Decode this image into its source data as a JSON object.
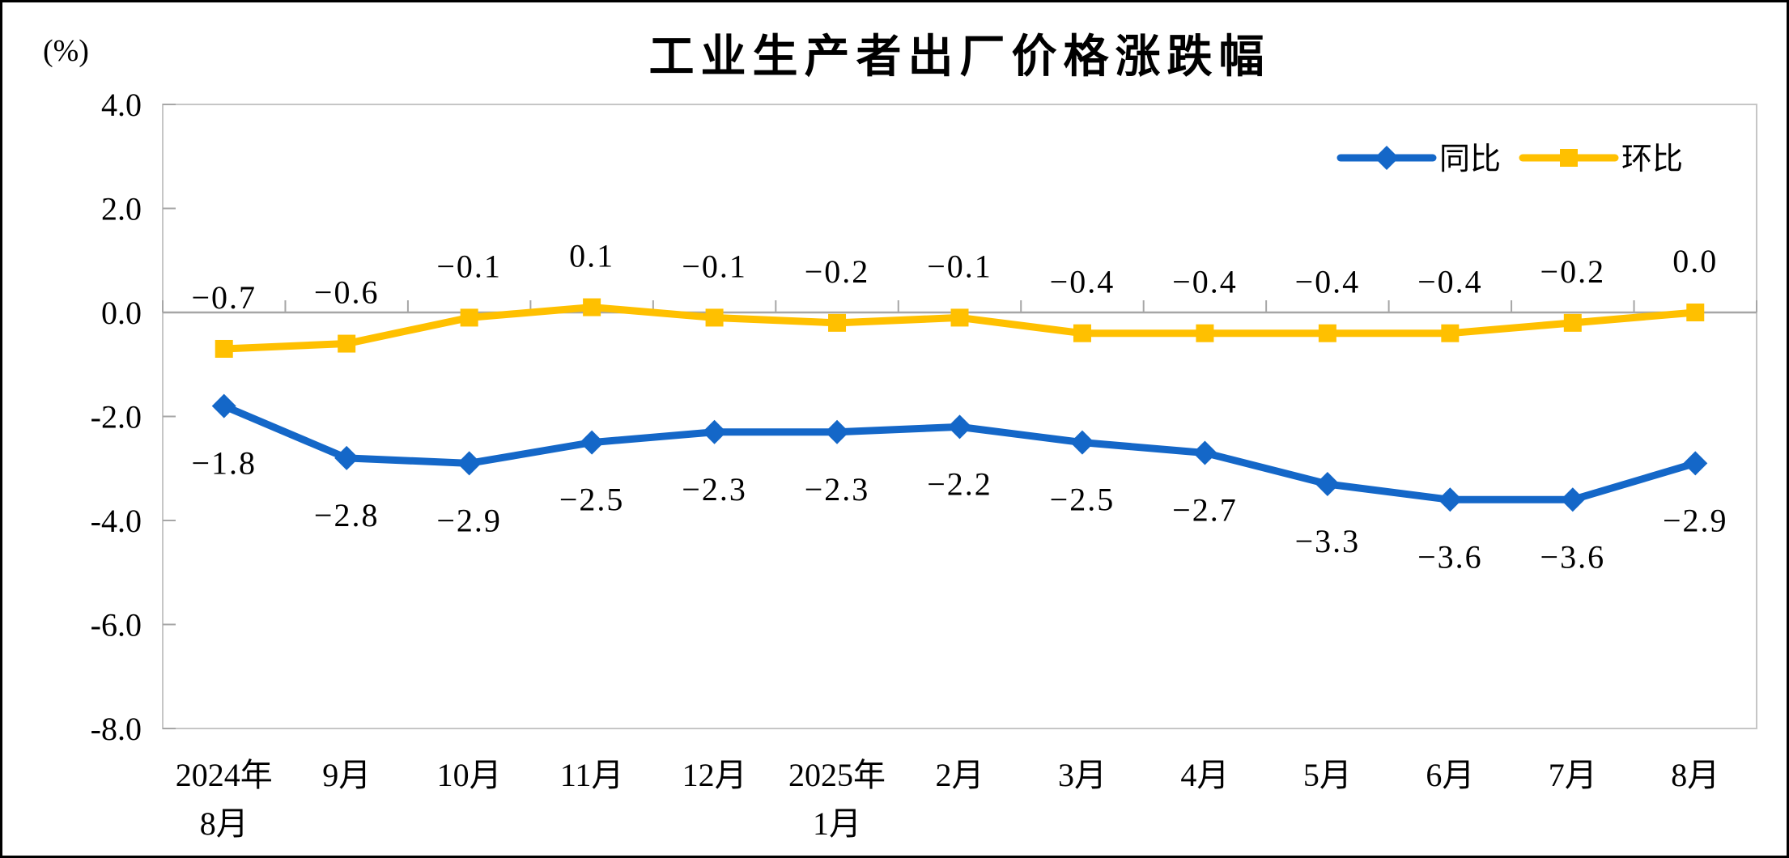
{
  "chart_data": {
    "type": "line",
    "title": "工业生产者出厂价格涨跌幅",
    "unit_label": "(%)",
    "categories": [
      [
        "2024年",
        "8月"
      ],
      [
        "9月"
      ],
      [
        "10月"
      ],
      [
        "11月"
      ],
      [
        "12月"
      ],
      [
        "2025年",
        "1月"
      ],
      [
        "2月"
      ],
      [
        "3月"
      ],
      [
        "4月"
      ],
      [
        "5月"
      ],
      [
        "6月"
      ],
      [
        "7月"
      ],
      [
        "8月"
      ]
    ],
    "y_axis": {
      "min": -8.0,
      "max": 4.0,
      "tick_step": 2.0,
      "tick_labels": [
        "4.0",
        "2.0",
        "0.0",
        "-2.0",
        "-4.0",
        "-6.0",
        "-8.0"
      ]
    },
    "grid": false,
    "legend_position": "top-right-inside",
    "series": [
      {
        "name": "同比",
        "key": "yoy",
        "marker": "diamond",
        "color": "#1467C8",
        "label_position": "below",
        "values": [
          -1.8,
          -2.8,
          -2.9,
          -2.5,
          -2.3,
          -2.3,
          -2.2,
          -2.5,
          -2.7,
          -3.3,
          -3.6,
          -3.6,
          -2.9
        ],
        "labels": [
          "−1.8",
          "−2.8",
          "−2.9",
          "−2.5",
          "−2.3",
          "−2.3",
          "−2.2",
          "−2.5",
          "−2.7",
          "−3.3",
          "−3.6",
          "−3.6",
          "−2.9"
        ]
      },
      {
        "name": "环比",
        "key": "mom",
        "marker": "square",
        "color": "#FFC000",
        "label_position": "above",
        "values": [
          -0.7,
          -0.6,
          -0.1,
          0.1,
          -0.1,
          -0.2,
          -0.1,
          -0.4,
          -0.4,
          -0.4,
          -0.4,
          -0.2,
          0.0
        ],
        "labels": [
          "−0.7",
          "−0.6",
          "−0.1",
          "0.1",
          "−0.1",
          "−0.2",
          "−0.1",
          "−0.4",
          "−0.4",
          "−0.4",
          "−0.4",
          "−0.2",
          "0.0"
        ]
      }
    ],
    "colors": {
      "plot_border": "#C6C6C6",
      "zero_line": "#A6A6A6",
      "tick": "#A6A6A6",
      "text": "#000000",
      "background": "#FFFFFF",
      "frame_border": "#000000"
    }
  }
}
